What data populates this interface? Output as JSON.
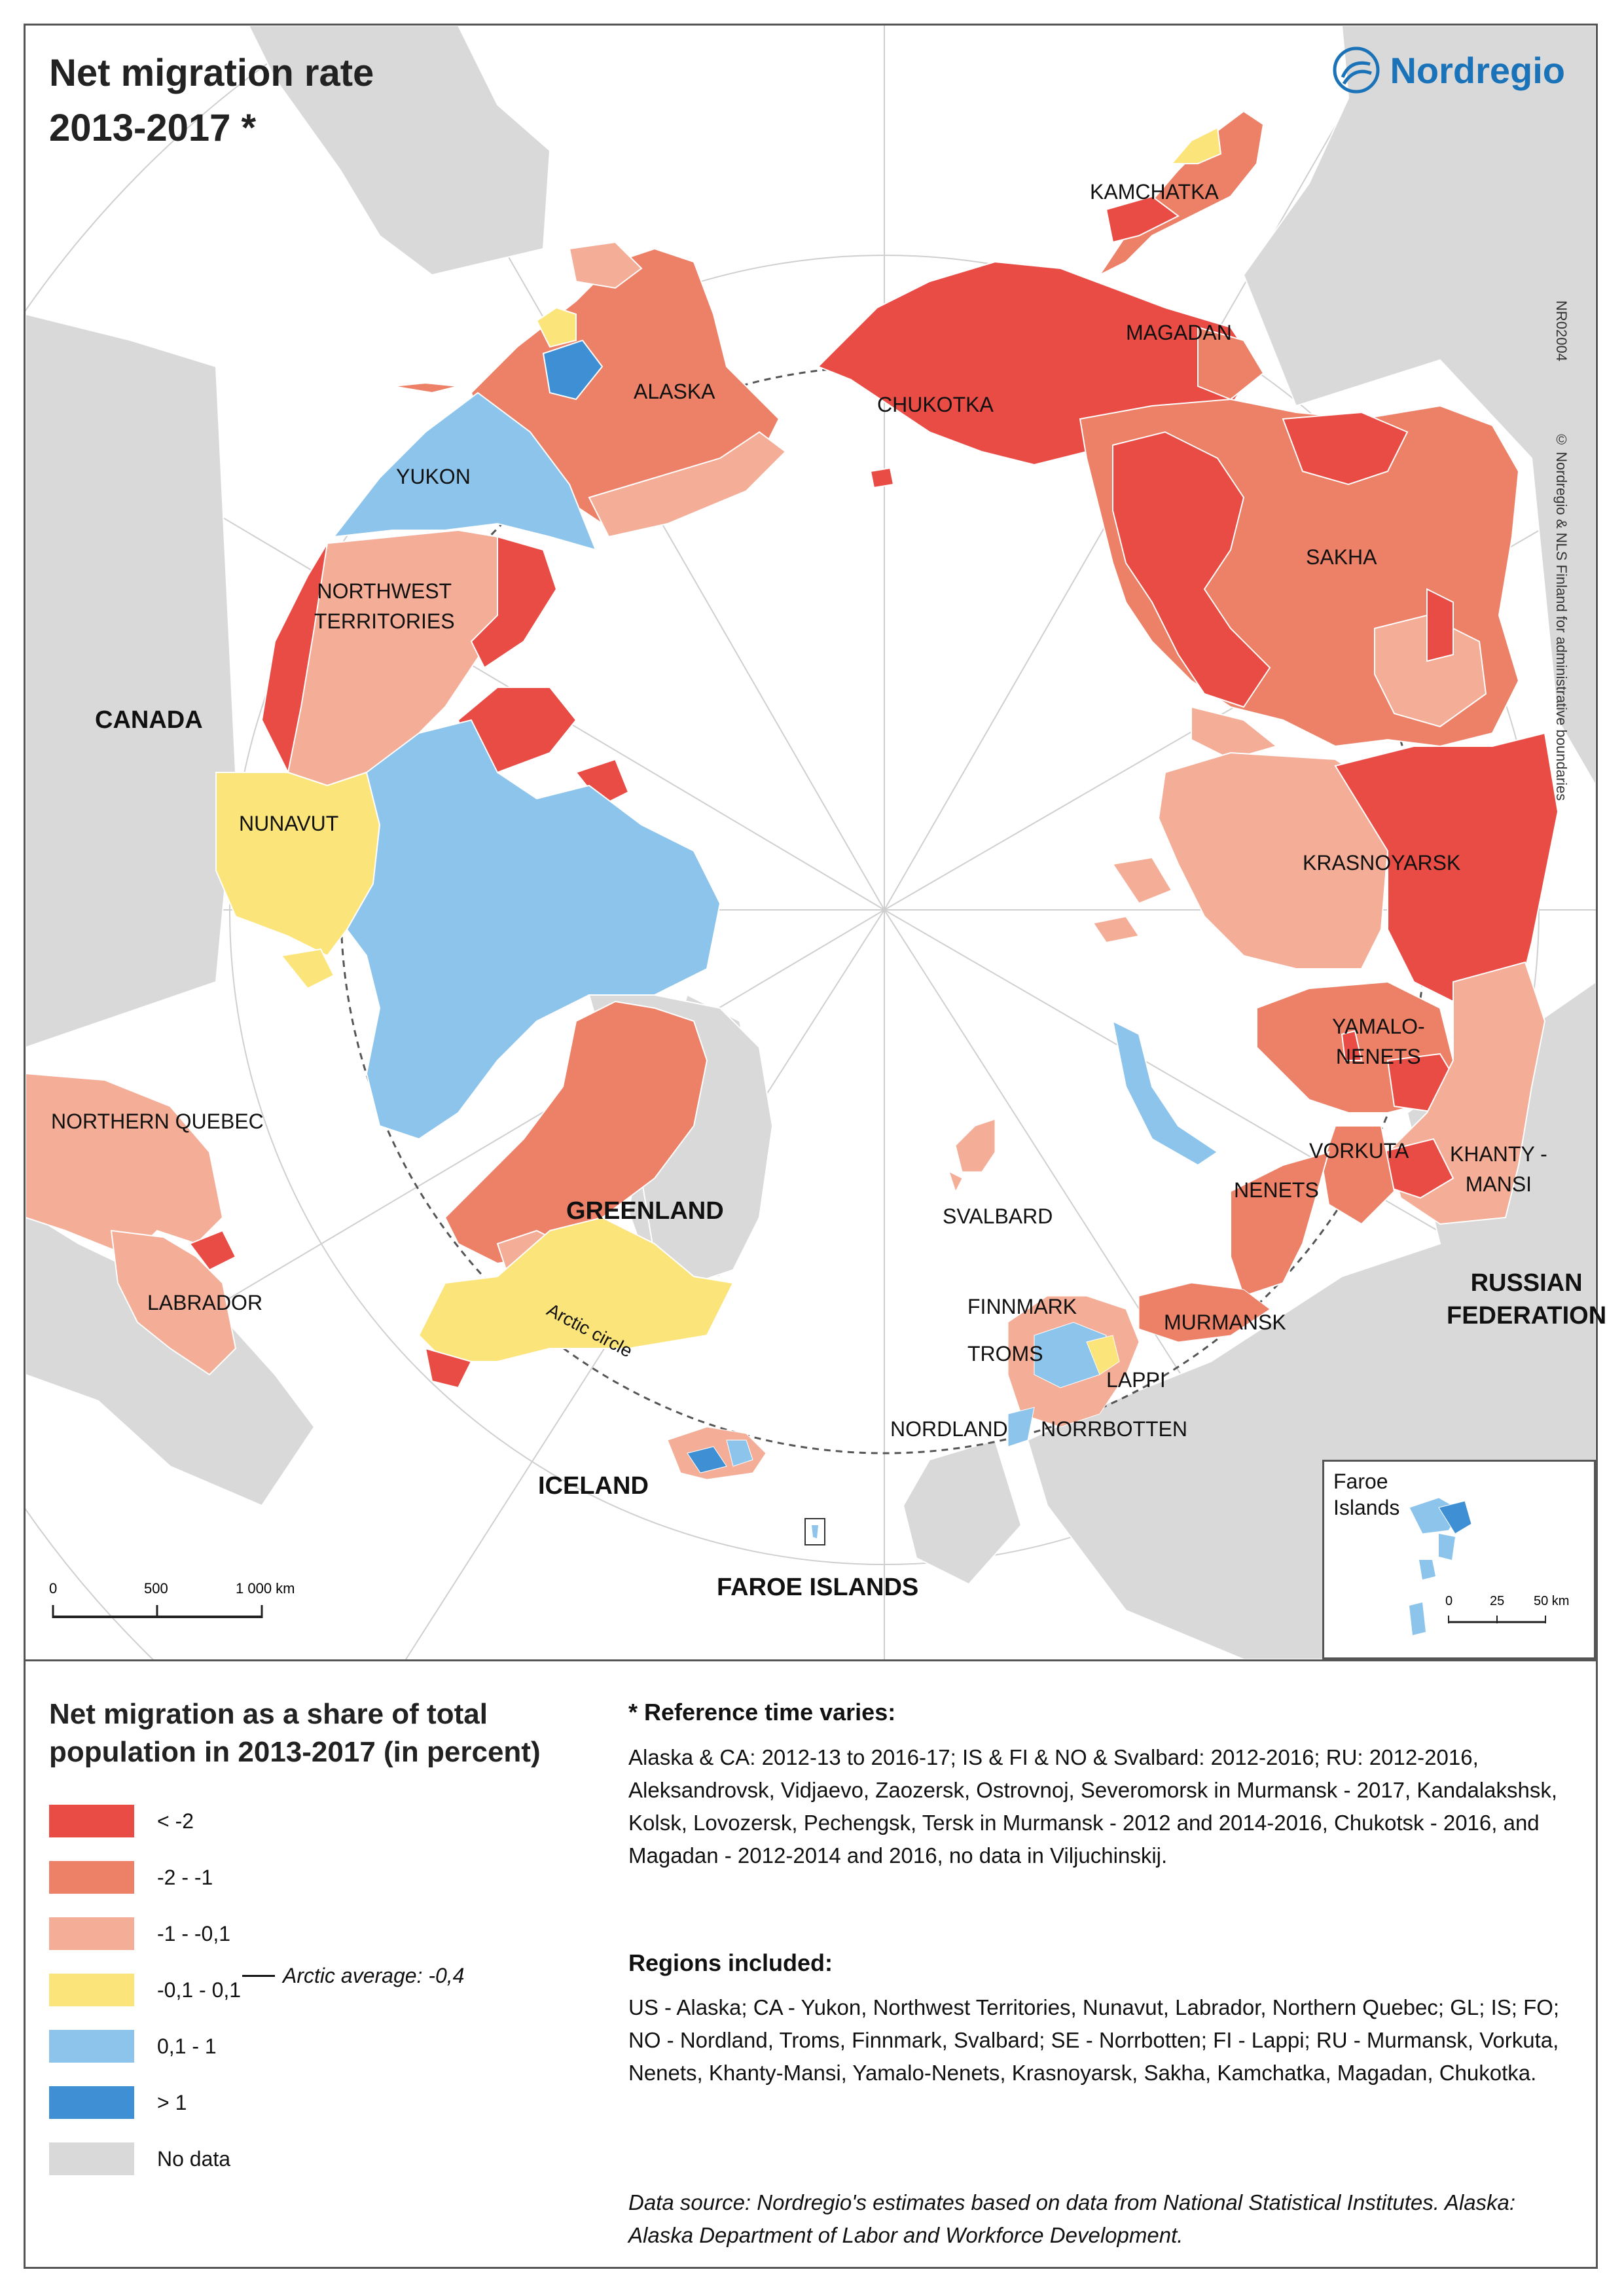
{
  "title_line1": "Net migration rate",
  "title_line2": "2013-2017 *",
  "logo": "Nordregio",
  "credit": "© Nordregio & NLS Finland for administrative boundaries",
  "map_code": "NR02004",
  "colors": {
    "lt_m2": "#e84c44",
    "m2_m1": "#ec8168",
    "m1_m01": "#f4ad97",
    "m01_01": "#fbe57b",
    "p01_1": "#8cc4ec",
    "gt1": "#3f8fd4",
    "no_data": "#d9d9d9"
  },
  "labels": {
    "kamchatka": "KAMCHATKA",
    "magadan": "MAGADAN",
    "chukotka": "CHUKOTKA",
    "alaska": "ALASKA",
    "yukon": "YUKON",
    "nwt_1": "NORTHWEST",
    "nwt_2": "TERRITORIES",
    "sakha": "SAKHA",
    "canada": "CANADA",
    "nunavut": "NUNAVUT",
    "krasnoyarsk": "KRASNOYARSK",
    "yamalo_1": "YAMALO-",
    "yamalo_2": "NENETS",
    "northern_quebec": "NORTHERN QUEBEC",
    "vorkuta": "VORKUTA",
    "khanty_1": "KHANTY -",
    "khanty_2": "MANSI",
    "nenets": "NENETS",
    "greenland": "GREENLAND",
    "svalbard": "SVALBARD",
    "russia_1": "RUSSIAN",
    "russia_2": "FEDERATION",
    "labrador": "LABRADOR",
    "finnmark": "FINNMARK",
    "murmansk": "MURMANSK",
    "troms": "TROMS",
    "lappi": "LAPPI",
    "nordland": "NORDLAND",
    "norrbotten": "NORRBOTTEN",
    "iceland": "ICELAND",
    "faroe": "FAROE ISLANDS",
    "arctic_circle": "Arctic circle"
  },
  "scale": {
    "t0": "0",
    "t1": "500",
    "t2": "1 000 km"
  },
  "inset": {
    "title_1": "Faroe",
    "title_2": "Islands",
    "t0": "0",
    "t1": "25",
    "t2": "50 km"
  },
  "legend": {
    "title": "Net migration as a share of total population in 2013-2017 (in percent)",
    "items": [
      {
        "label": "< -2",
        "color": "#e84c44"
      },
      {
        "label": "-2 - -1",
        "color": "#ec8168"
      },
      {
        "label": "-1 - -0,1",
        "color": "#f4ad97"
      },
      {
        "label": "-0,1 - 0,1",
        "color": "#fbe57b"
      },
      {
        "label": "0,1 - 1",
        "color": "#8cc4ec"
      },
      {
        "label": "> 1",
        "color": "#3f8fd4"
      },
      {
        "label": "No data",
        "color": "#d9d9d9"
      }
    ],
    "arctic_average": "Arctic average: -0,4"
  },
  "ref_heading": "* Reference time varies:",
  "ref_text": "Alaska & CA: 2012-13 to 2016-17; IS & FI & NO & Svalbard: 2012-2016; RU: 2012-2016, Aleksandrovsk, Vidjaevo, Zaozersk, Ostrovnoj, Severomorsk in Murmansk - 2017, Kandalakshsk, Kolsk, Lovozersk, Pechengsk, Tersk in Murmansk - 2012 and 2014-2016, Chukotsk - 2016, and Magadan - 2012-2014 and 2016, no data in Viljuchinskij.",
  "regions_heading": "Regions included:",
  "regions_text": "US - Alaska; CA - Yukon, Northwest Territories, Nunavut, Labrador, Northern Quebec; GL; IS; FO; NO - Nordland, Troms, Finnmark, Svalbard; SE - Norrbotten; FI - Lappi; RU - Murmansk, Vorkuta, Nenets, Khanty-Mansi, Yamalo-Nenets, Krasnoyarsk, Sakha, Kamchatka, Magadan, Chukotka.",
  "source": "Data source: Nordregio's estimates based on data from National Statistical Institutes. Alaska: Alaska Department of Labor and Workforce Development."
}
